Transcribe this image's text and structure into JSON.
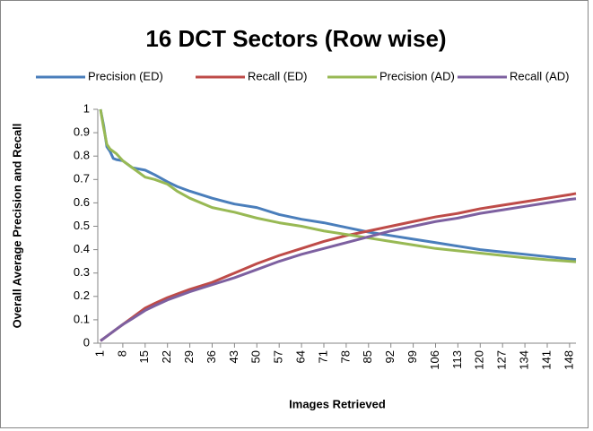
{
  "chart_data": {
    "type": "line",
    "title": "16 DCT Sectors (Row wise)",
    "x_label": "Images Retrieved",
    "y_label": "Overall Average Precision and Recall",
    "x": [
      1,
      2,
      3,
      4,
      5,
      6,
      8,
      11,
      15,
      18,
      22,
      25,
      29,
      36,
      43,
      50,
      57,
      64,
      71,
      78,
      85,
      92,
      99,
      106,
      113,
      120,
      127,
      134,
      141,
      148,
      150
    ],
    "series": [
      {
        "name": "Precision (ED)",
        "color": "#4a7ebb",
        "values": [
          1.0,
          0.93,
          0.84,
          0.82,
          0.79,
          0.785,
          0.78,
          0.75,
          0.74,
          0.72,
          0.69,
          0.67,
          0.65,
          0.62,
          0.595,
          0.58,
          0.55,
          0.53,
          0.515,
          0.495,
          0.475,
          0.46,
          0.445,
          0.43,
          0.415,
          0.4,
          0.39,
          0.38,
          0.37,
          0.36,
          0.358
        ]
      },
      {
        "name": "Recall (ED)",
        "color": "#be4b48",
        "values": [
          0.01,
          0.02,
          0.03,
          0.04,
          0.05,
          0.06,
          0.08,
          0.11,
          0.15,
          0.17,
          0.195,
          0.21,
          0.23,
          0.26,
          0.3,
          0.34,
          0.375,
          0.405,
          0.435,
          0.46,
          0.48,
          0.5,
          0.52,
          0.54,
          0.555,
          0.575,
          0.59,
          0.605,
          0.62,
          0.635,
          0.64
        ]
      },
      {
        "name": "Precision (AD)",
        "color": "#98b954",
        "values": [
          1.0,
          0.92,
          0.85,
          0.83,
          0.82,
          0.81,
          0.78,
          0.75,
          0.71,
          0.7,
          0.68,
          0.65,
          0.62,
          0.58,
          0.56,
          0.535,
          0.515,
          0.5,
          0.48,
          0.465,
          0.45,
          0.435,
          0.42,
          0.405,
          0.395,
          0.385,
          0.375,
          0.365,
          0.357,
          0.35,
          0.348
        ]
      },
      {
        "name": "Recall (AD)",
        "color": "#7d60a0",
        "values": [
          0.01,
          0.02,
          0.03,
          0.04,
          0.05,
          0.06,
          0.08,
          0.105,
          0.14,
          0.16,
          0.185,
          0.2,
          0.22,
          0.25,
          0.28,
          0.315,
          0.35,
          0.38,
          0.405,
          0.43,
          0.455,
          0.48,
          0.5,
          0.52,
          0.535,
          0.555,
          0.57,
          0.585,
          0.6,
          0.615,
          0.618
        ]
      }
    ],
    "xlim": [
      1,
      150
    ],
    "xticks": [
      1,
      8,
      15,
      22,
      29,
      36,
      43,
      50,
      57,
      64,
      71,
      78,
      85,
      92,
      99,
      106,
      113,
      120,
      127,
      134,
      141,
      148
    ],
    "ylim": [
      0,
      1
    ],
    "yticks": [
      0,
      0.1,
      0.2,
      0.3,
      0.4,
      0.5,
      0.6,
      0.7,
      0.8,
      0.9,
      1
    ],
    "grid": false,
    "legend": "top"
  }
}
